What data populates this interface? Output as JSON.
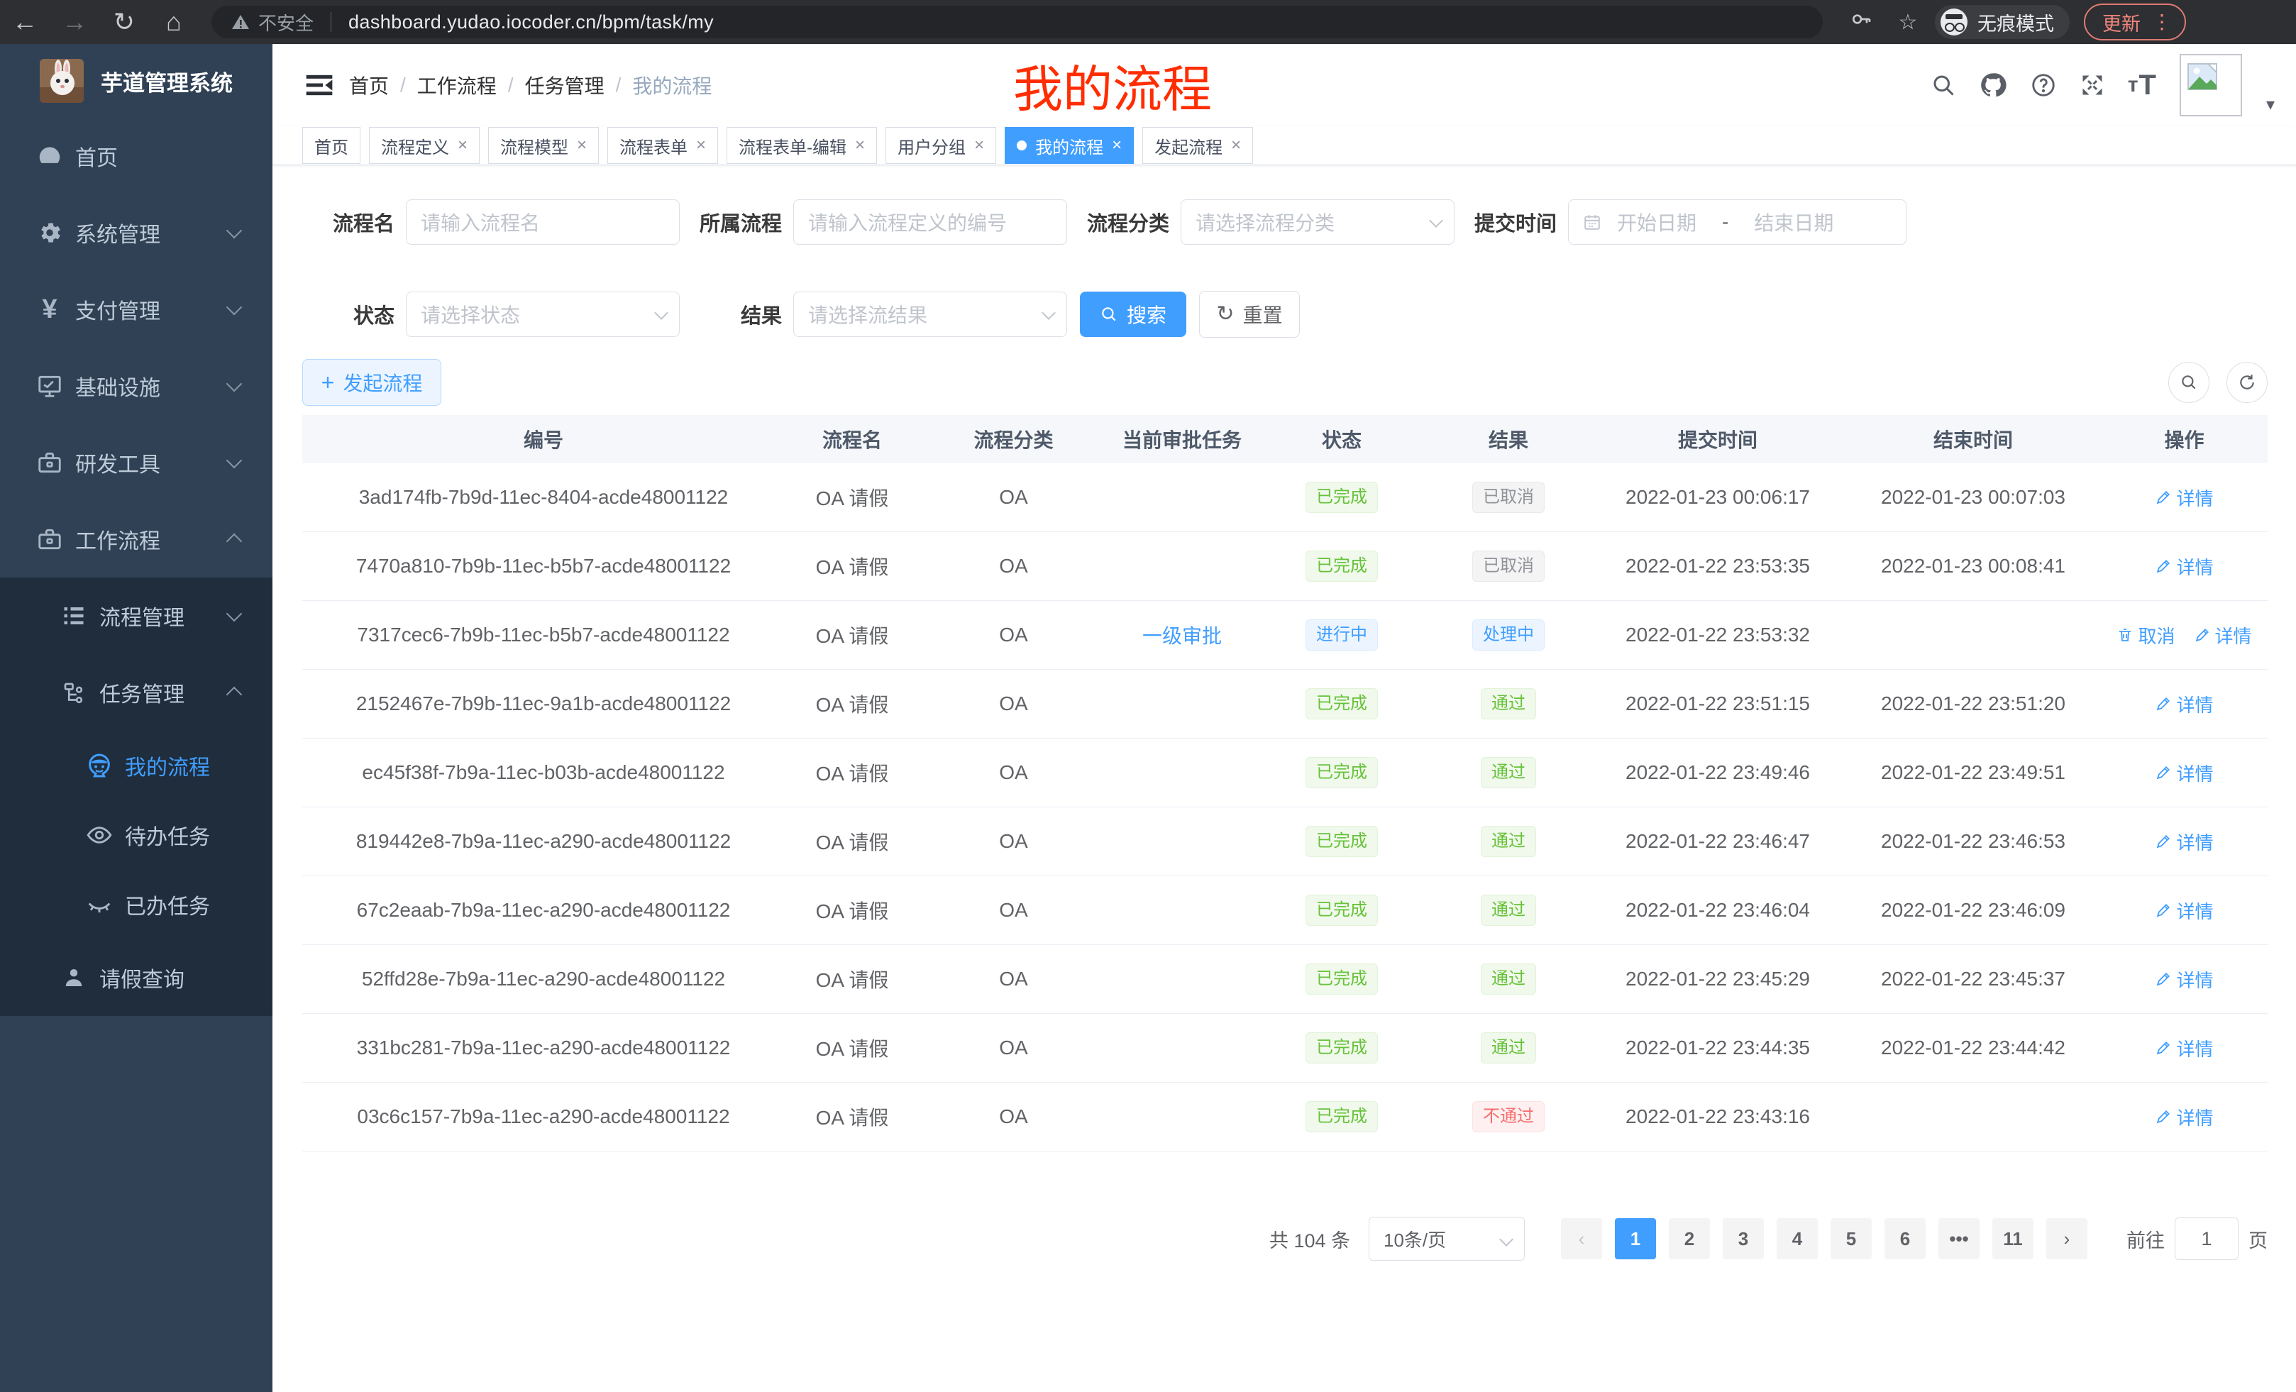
{
  "browser": {
    "security_label": "不安全",
    "url": "dashboard.yudao.iocoder.cn/bpm/task/my",
    "incognito_label": "无痕模式",
    "update_label": "更新"
  },
  "sidebar": {
    "app_title": "芋道管理系统",
    "menu": [
      {
        "label": "首页",
        "icon": "dashboard-icon"
      },
      {
        "label": "系统管理",
        "icon": "gear-icon"
      },
      {
        "label": "支付管理",
        "icon": "yen-icon"
      },
      {
        "label": "基础设施",
        "icon": "monitor-icon"
      },
      {
        "label": "研发工具",
        "icon": "toolbox-icon"
      },
      {
        "label": "工作流程",
        "icon": "briefcase-icon"
      }
    ],
    "submenu": [
      {
        "label": "流程管理",
        "icon": "tree-list-icon"
      },
      {
        "label": "任务管理",
        "icon": "flow-icon"
      }
    ],
    "tasks_submenu": [
      {
        "label": "我的流程",
        "icon": "face-icon",
        "active": true
      },
      {
        "label": "待办任务",
        "icon": "eye-icon"
      },
      {
        "label": "已办任务",
        "icon": "eye-closed-icon"
      }
    ],
    "leave_item": {
      "label": "请假查询",
      "icon": "person-icon"
    }
  },
  "header": {
    "breadcrumb": [
      "首页",
      "工作流程",
      "任务管理",
      "我的流程"
    ],
    "annotation": "我的流程"
  },
  "tabs": [
    {
      "label": "首页",
      "closable": false,
      "active": false
    },
    {
      "label": "流程定义",
      "closable": true,
      "active": false
    },
    {
      "label": "流程模型",
      "closable": true,
      "active": false
    },
    {
      "label": "流程表单",
      "closable": true,
      "active": false
    },
    {
      "label": "流程表单-编辑",
      "closable": true,
      "active": false
    },
    {
      "label": "用户分组",
      "closable": true,
      "active": false
    },
    {
      "label": "我的流程",
      "closable": true,
      "active": true
    },
    {
      "label": "发起流程",
      "closable": true,
      "active": false
    }
  ],
  "filters": {
    "name_label": "流程名",
    "name_placeholder": "请输入流程名",
    "definition_label": "所属流程",
    "definition_placeholder": "请输入流程定义的编号",
    "category_label": "流程分类",
    "category_placeholder": "请选择流程分类",
    "time_label": "提交时间",
    "time_start_placeholder": "开始日期",
    "time_separator": "-",
    "time_end_placeholder": "结束日期",
    "status_label": "状态",
    "status_placeholder": "请选择状态",
    "result_label": "结果",
    "result_placeholder": "请选择流结果",
    "search_label": "搜索",
    "reset_label": "重置"
  },
  "toolbar": {
    "create_label": "发起流程"
  },
  "table": {
    "columns": [
      "编号",
      "流程名",
      "流程分类",
      "当前审批任务",
      "状态",
      "结果",
      "提交时间",
      "结束时间",
      "操作"
    ],
    "rows": [
      {
        "id": "3ad174fb-7b9d-11ec-8404-acde48001122",
        "name": "OA 请假",
        "category": "OA",
        "current_task": "",
        "status": {
          "text": "已完成",
          "type": "success"
        },
        "result": {
          "text": "已取消",
          "type": "info"
        },
        "submit_time": "2022-01-23 00:06:17",
        "end_time": "2022-01-23 00:07:03",
        "ops": [
          {
            "label": "详情",
            "icon": "pen-icon"
          }
        ]
      },
      {
        "id": "7470a810-7b9b-11ec-b5b7-acde48001122",
        "name": "OA 请假",
        "category": "OA",
        "current_task": "",
        "status": {
          "text": "已完成",
          "type": "success"
        },
        "result": {
          "text": "已取消",
          "type": "info"
        },
        "submit_time": "2022-01-22 23:53:35",
        "end_time": "2022-01-23 00:08:41",
        "ops": [
          {
            "label": "详情",
            "icon": "pen-icon"
          }
        ]
      },
      {
        "id": "7317cec6-7b9b-11ec-b5b7-acde48001122",
        "name": "OA 请假",
        "category": "OA",
        "current_task": "一级审批",
        "status": {
          "text": "进行中",
          "type": "primary"
        },
        "result": {
          "text": "处理中",
          "type": "primary"
        },
        "submit_time": "2022-01-22 23:53:32",
        "end_time": "",
        "ops": [
          {
            "label": "取消",
            "icon": "trash-icon"
          },
          {
            "label": "详情",
            "icon": "pen-icon"
          }
        ]
      },
      {
        "id": "2152467e-7b9b-11ec-9a1b-acde48001122",
        "name": "OA 请假",
        "category": "OA",
        "current_task": "",
        "status": {
          "text": "已完成",
          "type": "success"
        },
        "result": {
          "text": "通过",
          "type": "success"
        },
        "submit_time": "2022-01-22 23:51:15",
        "end_time": "2022-01-22 23:51:20",
        "ops": [
          {
            "label": "详情",
            "icon": "pen-icon"
          }
        ]
      },
      {
        "id": "ec45f38f-7b9a-11ec-b03b-acde48001122",
        "name": "OA 请假",
        "category": "OA",
        "current_task": "",
        "status": {
          "text": "已完成",
          "type": "success"
        },
        "result": {
          "text": "通过",
          "type": "success"
        },
        "submit_time": "2022-01-22 23:49:46",
        "end_time": "2022-01-22 23:49:51",
        "ops": [
          {
            "label": "详情",
            "icon": "pen-icon"
          }
        ]
      },
      {
        "id": "819442e8-7b9a-11ec-a290-acde48001122",
        "name": "OA 请假",
        "category": "OA",
        "current_task": "",
        "status": {
          "text": "已完成",
          "type": "success"
        },
        "result": {
          "text": "通过",
          "type": "success"
        },
        "submit_time": "2022-01-22 23:46:47",
        "end_time": "2022-01-22 23:46:53",
        "ops": [
          {
            "label": "详情",
            "icon": "pen-icon"
          }
        ]
      },
      {
        "id": "67c2eaab-7b9a-11ec-a290-acde48001122",
        "name": "OA 请假",
        "category": "OA",
        "current_task": "",
        "status": {
          "text": "已完成",
          "type": "success"
        },
        "result": {
          "text": "通过",
          "type": "success"
        },
        "submit_time": "2022-01-22 23:46:04",
        "end_time": "2022-01-22 23:46:09",
        "ops": [
          {
            "label": "详情",
            "icon": "pen-icon"
          }
        ]
      },
      {
        "id": "52ffd28e-7b9a-11ec-a290-acde48001122",
        "name": "OA 请假",
        "category": "OA",
        "current_task": "",
        "status": {
          "text": "已完成",
          "type": "success"
        },
        "result": {
          "text": "通过",
          "type": "success"
        },
        "submit_time": "2022-01-22 23:45:29",
        "end_time": "2022-01-22 23:45:37",
        "ops": [
          {
            "label": "详情",
            "icon": "pen-icon"
          }
        ]
      },
      {
        "id": "331bc281-7b9a-11ec-a290-acde48001122",
        "name": "OA 请假",
        "category": "OA",
        "current_task": "",
        "status": {
          "text": "已完成",
          "type": "success"
        },
        "result": {
          "text": "通过",
          "type": "success"
        },
        "submit_time": "2022-01-22 23:44:35",
        "end_time": "2022-01-22 23:44:42",
        "ops": [
          {
            "label": "详情",
            "icon": "pen-icon"
          }
        ]
      },
      {
        "id": "03c6c157-7b9a-11ec-a290-acde48001122",
        "name": "OA 请假",
        "category": "OA",
        "current_task": "",
        "status": {
          "text": "已完成",
          "type": "success"
        },
        "result": {
          "text": "不通过",
          "type": "danger"
        },
        "submit_time": "2022-01-22 23:43:16",
        "end_time": "",
        "ops": [
          {
            "label": "详情",
            "icon": "pen-icon"
          }
        ]
      }
    ]
  },
  "pagination": {
    "total_label": "共 104 条",
    "page_size": "10条/页",
    "pages": [
      "1",
      "2",
      "3",
      "4",
      "5",
      "6",
      "•••",
      "11"
    ],
    "active_page": "1",
    "goto_label": "前往",
    "goto_value": "1",
    "unit_label": "页"
  },
  "colors": {
    "accent": "#409eff",
    "success": "#67c23a",
    "danger": "#f56c6c",
    "info": "#909399",
    "annotation": "#ff2d00"
  }
}
